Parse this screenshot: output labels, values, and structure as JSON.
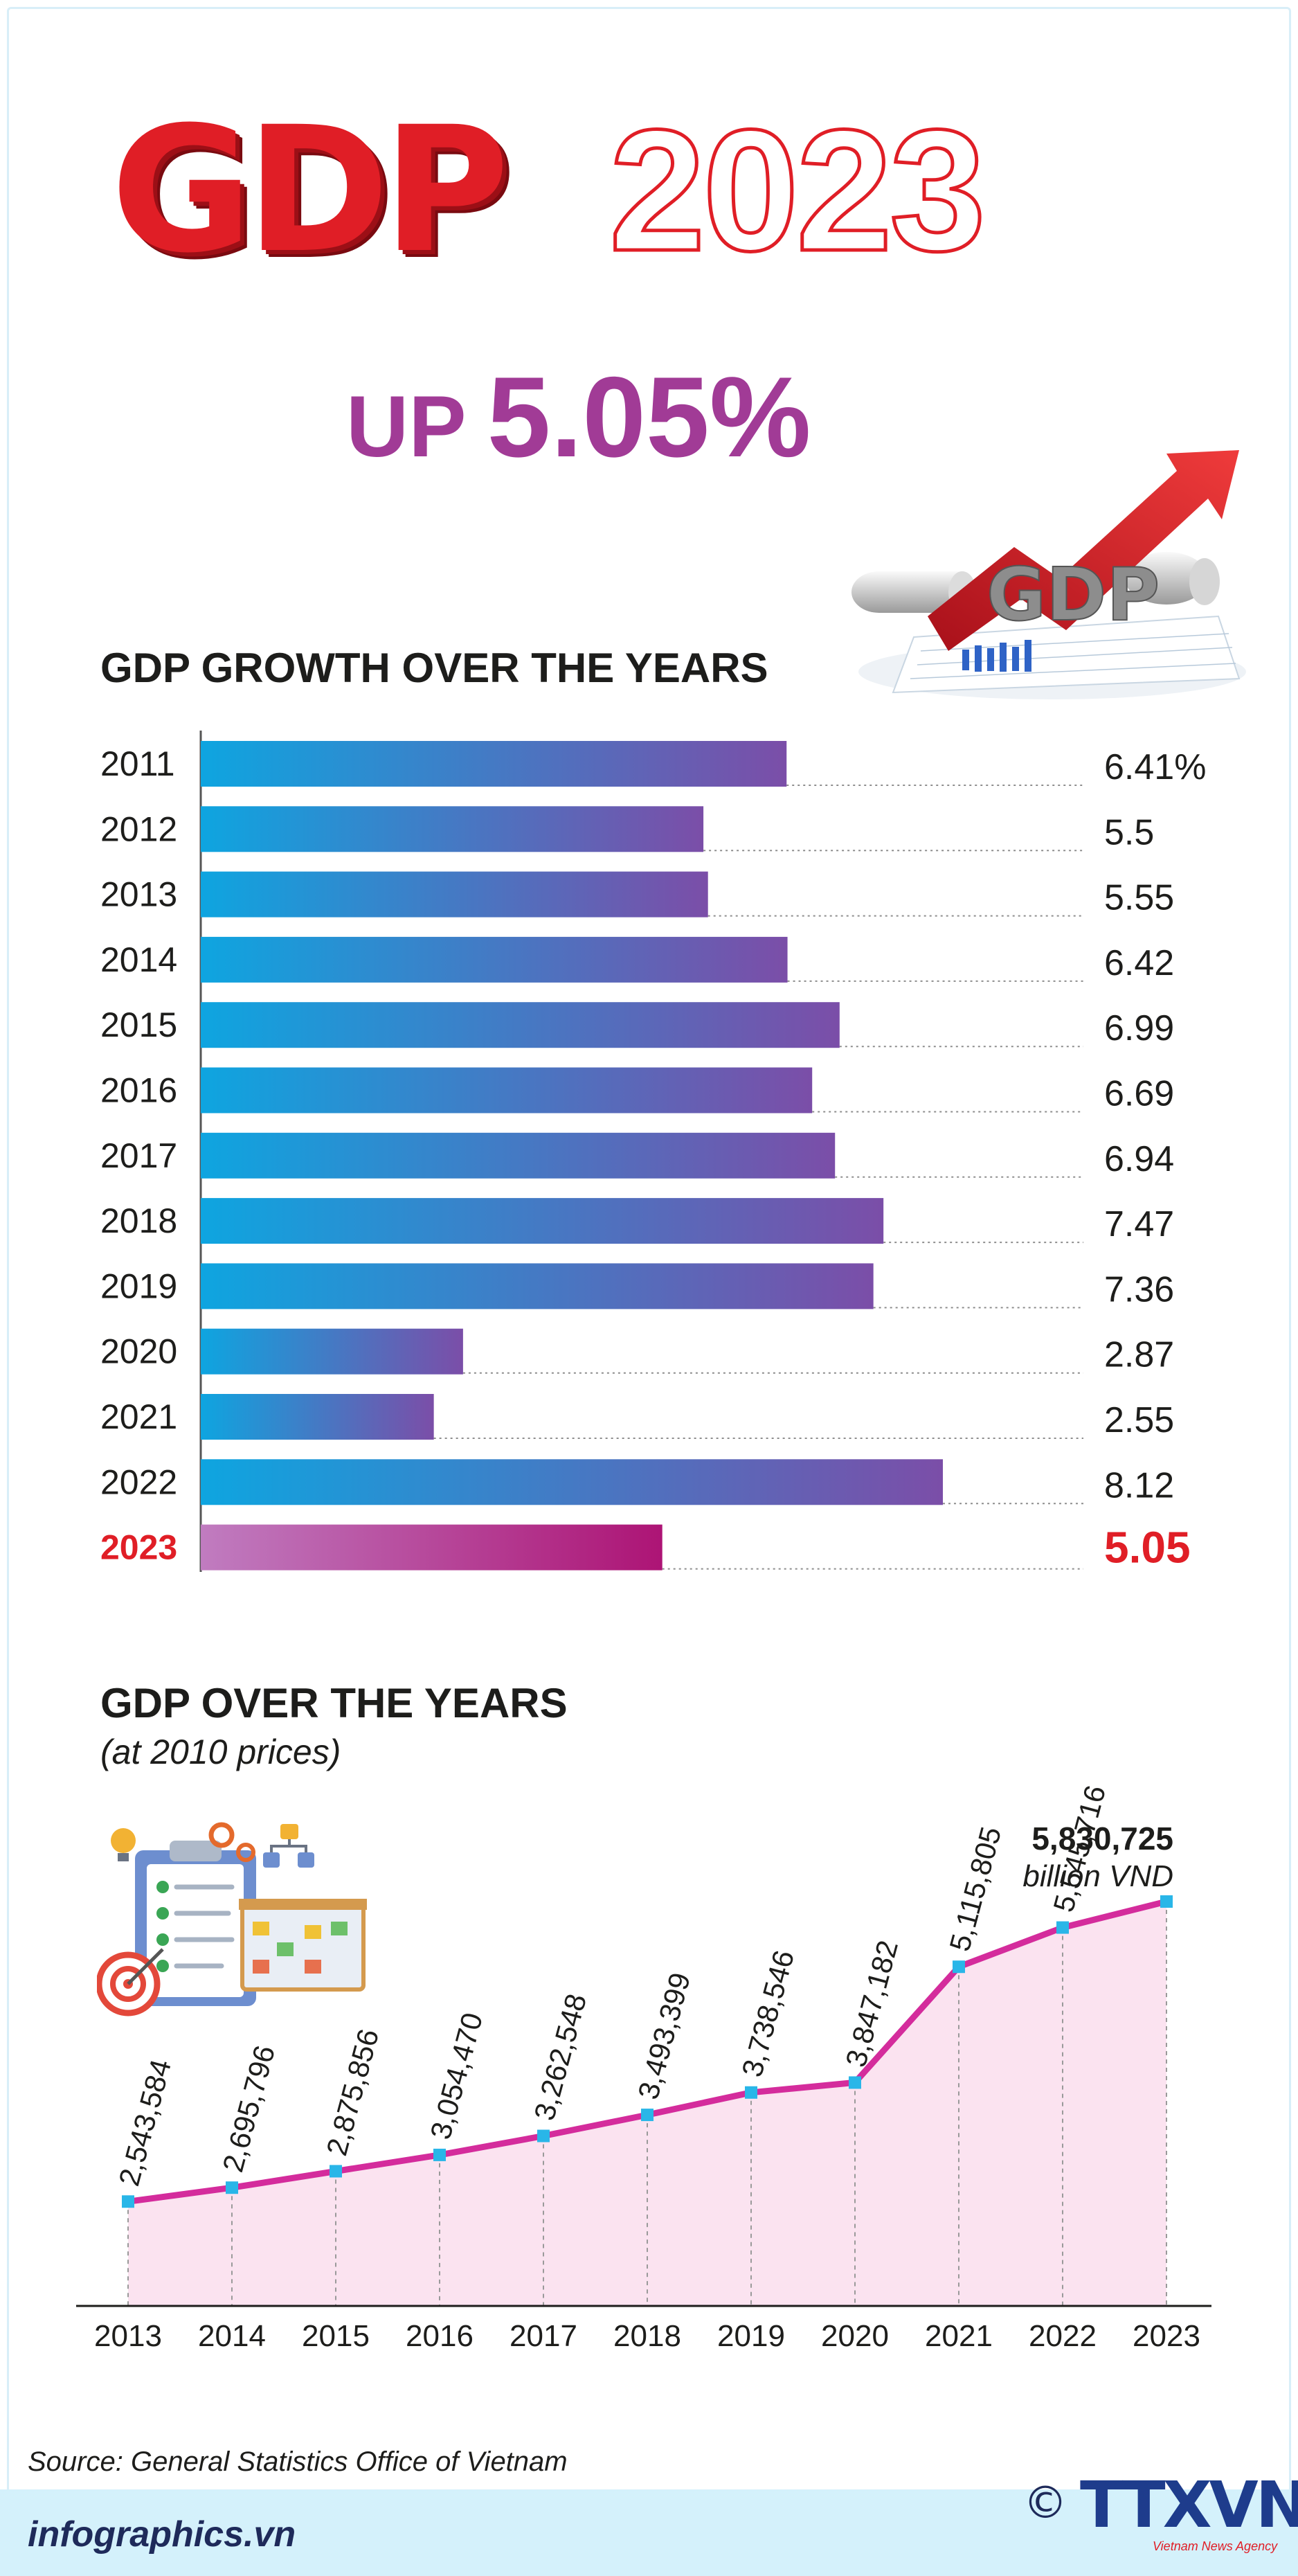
{
  "header": {
    "title_word": "GDP",
    "title_year": "2023",
    "up_label": "UP",
    "up_value": "5.05%",
    "icon_label": "GDP"
  },
  "colors": {
    "red": "#e01e26",
    "purple": "#a13b96",
    "bar_start": "#0ea5e0",
    "bar_end": "#7b4ea8",
    "highlight_start": "#c07cc0",
    "highlight_end": "#ad1475",
    "line": "#d42c9c",
    "point": "#29b6e8",
    "area": "#fbe3f0",
    "navy": "#1e2a5a"
  },
  "chart_data": [
    {
      "type": "bar",
      "orientation": "horizontal",
      "title": "GDP GROWTH OVER THE YEARS",
      "categories": [
        "2011",
        "2012",
        "2013",
        "2014",
        "2015",
        "2016",
        "2017",
        "2018",
        "2019",
        "2020",
        "2021",
        "2022",
        "2023"
      ],
      "values": [
        6.41,
        5.5,
        5.55,
        6.42,
        6.99,
        6.69,
        6.94,
        7.47,
        7.36,
        2.87,
        2.55,
        8.12,
        5.05
      ],
      "value_labels": [
        "6.41%",
        "5.5",
        "5.55",
        "6.42",
        "6.99",
        "6.69",
        "6.94",
        "7.47",
        "7.36",
        "2.87",
        "2.55",
        "8.12",
        "5.05"
      ],
      "highlight_index": 12,
      "xlim": [
        0,
        8.12
      ],
      "grid": false
    },
    {
      "type": "area",
      "title": "GDP OVER THE YEARS",
      "subtitle": "(at 2010 prices)",
      "categories": [
        "2013",
        "2014",
        "2015",
        "2016",
        "2017",
        "2018",
        "2019",
        "2020",
        "2021",
        "2022",
        "2023"
      ],
      "values": [
        2543584,
        2695796,
        2875856,
        3054470,
        3262548,
        3493399,
        3738546,
        3847182,
        5115805,
        5545716,
        5830725
      ],
      "value_labels": [
        "2,543,584",
        "2,695,796",
        "2,875,856",
        "3,054,470",
        "3,262,548",
        "3,493,399",
        "3,738,546",
        "3,847,182",
        "5,115,805",
        "5,545,716",
        "5,830,725"
      ],
      "unit": "billion VND",
      "ylim": [
        1400000,
        5830725
      ],
      "grid": false
    }
  ],
  "footer": {
    "source": "Source: General Statistics Office of Vietnam",
    "site": "infographics.vn",
    "copyright": "©",
    "logo": "TTXVN",
    "logo_sub": "Vietnam News Agency"
  }
}
